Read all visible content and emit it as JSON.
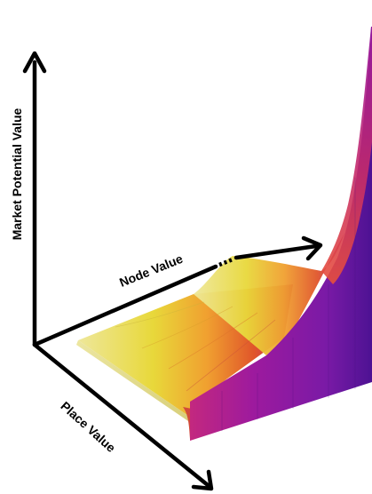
{
  "axes": {
    "vertical": "Market  Potential Value",
    "depth_right": "Node Value",
    "depth_left": "Place Value"
  },
  "colors": {
    "axis": "#000000",
    "surface_low": "#f2ee9a",
    "surface_mid": "#f0a030",
    "surface_high": "#d8422a",
    "side_wall": "#8a1fa8",
    "side_wall_dark": "#5b1297"
  }
}
